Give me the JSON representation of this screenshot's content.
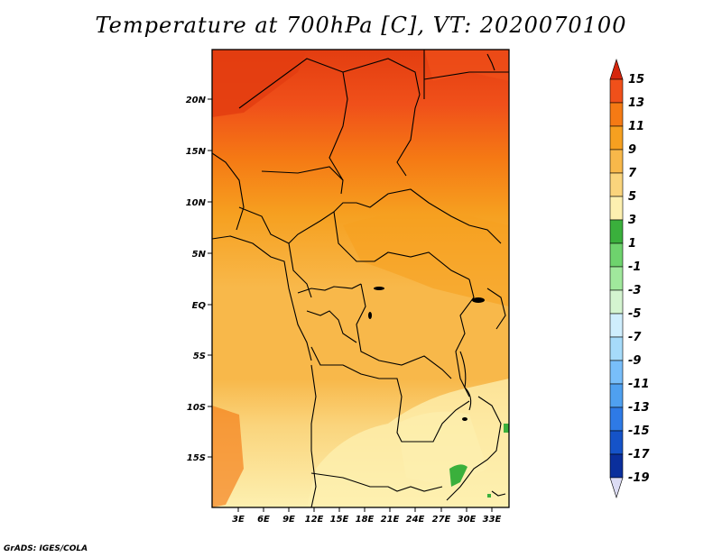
{
  "title": "Temperature at 700hPa [C], VT: 2020070100",
  "credit": "GrADS: IGES/COLA",
  "map": {
    "region": "Central Africa",
    "lat_range": [
      -19,
      25
    ],
    "lon_range": [
      0,
      35
    ],
    "lat_ticks": [
      "20N",
      "15N",
      "10N",
      "5N",
      "EQ",
      "5S",
      "10S",
      "15S"
    ],
    "lon_ticks": [
      "3E",
      "6E",
      "9E",
      "12E",
      "15E",
      "18E",
      "21E",
      "24E",
      "27E",
      "30E",
      "33E"
    ]
  },
  "colorbar": {
    "labels": [
      "15",
      "13",
      "11",
      "9",
      "7",
      "5",
      "3",
      "1",
      "-1",
      "-3",
      "-5",
      "-7",
      "-9",
      "-11",
      "-13",
      "-15",
      "-17",
      "-19"
    ],
    "colors": [
      "#d5260d",
      "#f0501a",
      "#f57a14",
      "#f6a020",
      "#f8b84a",
      "#fad47c",
      "#fdf0b0",
      "#3ab03c",
      "#6ed36d",
      "#a0e89c",
      "#d4f4d0",
      "#cfeefd",
      "#a6dbfa",
      "#78befa",
      "#4fa0f0",
      "#2e7ae6",
      "#1553c8",
      "#0a2f9c",
      "#080f62"
    ]
  }
}
